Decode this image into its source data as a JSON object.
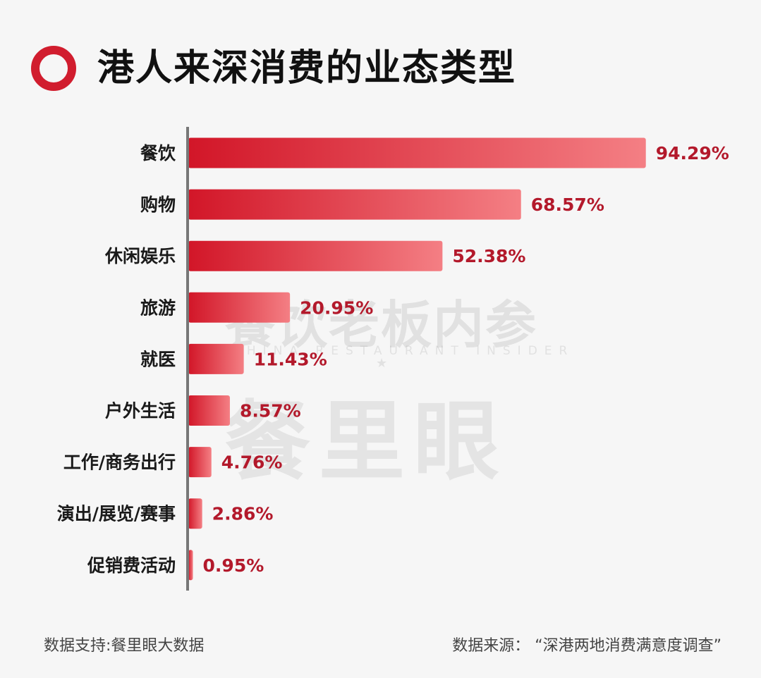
{
  "title": "港人来深消费的业态类型",
  "watermark": {
    "brand_cn": "餐饮老板内参",
    "brand_en": "CHINA RESTAURANT INSIDER",
    "star": "★",
    "big": "餐里眼"
  },
  "footer": {
    "left": "数据支持:餐里眼大数据",
    "right": "数据来源： “深港两地消费满意度调查”"
  },
  "colors": {
    "bar_start": "#d21628",
    "bar_end": "#f47f84",
    "value_label": "#b3192b",
    "axis": "#777777",
    "title_ring": "#d11d2e"
  },
  "chart_data": {
    "type": "bar",
    "orientation": "horizontal",
    "categories": [
      "餐饮",
      "购物",
      "休闲娱乐",
      "旅游",
      "就医",
      "户外生活",
      "工作/商务出行",
      "演出/展览/赛事",
      "促销费活动"
    ],
    "values": [
      94.29,
      68.57,
      52.38,
      20.95,
      11.43,
      8.57,
      4.76,
      2.86,
      0.95
    ],
    "value_labels": [
      "94.29%",
      "68.57%",
      "52.38%",
      "20.95%",
      "11.43%",
      "8.57%",
      "4.76%",
      "2.86%",
      "0.95%"
    ],
    "title": "港人来深消费的业态类型",
    "xlabel": "",
    "ylabel": "",
    "xlim": [
      0,
      100
    ],
    "grid": false,
    "legend": "none"
  }
}
